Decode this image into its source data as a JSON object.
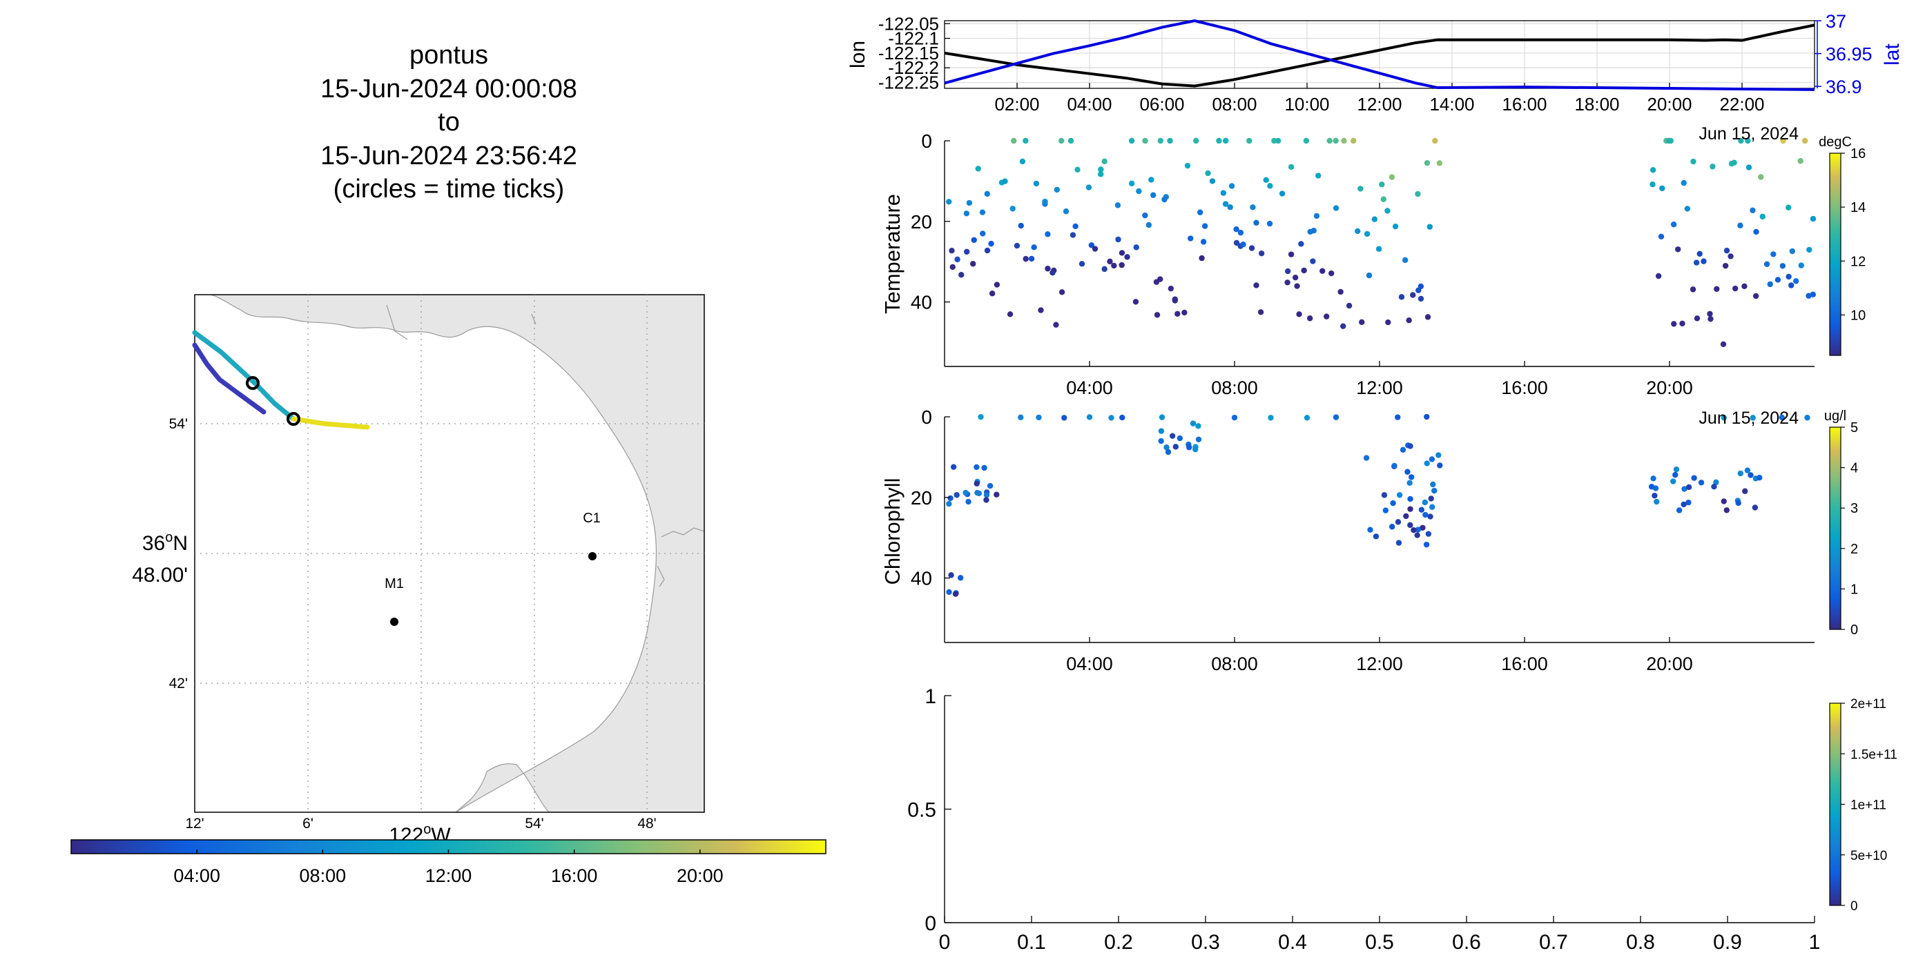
{
  "header": {
    "lines": [
      "pontus",
      "15-Jun-2024 00:00:08",
      "to",
      "15-Jun-2024 23:56:42",
      "(circles = time ticks)"
    ]
  },
  "map": {
    "lat_ticks": [
      "54'",
      "36",
      "48.00'",
      "42'"
    ],
    "lat_deg_sup": "o",
    "lat_hemi": "N",
    "lon_ticks": [
      "12'",
      "6'",
      "54'",
      "48'"
    ],
    "lon_main": "122",
    "lon_deg_sup": "o",
    "lon_hemi": "W",
    "stations": [
      {
        "name": "C1",
        "lon": -121.837,
        "lat": 36.797
      },
      {
        "name": "M1",
        "lon": -122.022,
        "lat": 36.747
      }
    ],
    "land_color": "#e6e6e6",
    "time_colorbar": {
      "ticks": [
        "04:00",
        "08:00",
        "12:00",
        "16:00",
        "20:00"
      ]
    }
  },
  "chart_data": [
    {
      "type": "line",
      "title": "",
      "xlabel": "",
      "ylabel": "lon",
      "ylabel_right": "lat",
      "x_ticks": [
        "02:00",
        "04:00",
        "06:00",
        "08:00",
        "10:00",
        "12:00",
        "14:00",
        "16:00",
        "18:00",
        "20:00",
        "22:00"
      ],
      "xlim": [
        0,
        24
      ],
      "y_ticks_left": [
        "-122.05",
        "-122.1",
        "-122.15",
        "-122.2",
        "-122.25"
      ],
      "ylim_left": [
        -122.27,
        -122.04
      ],
      "y_ticks_right": [
        "37",
        "36.95",
        "36.9"
      ],
      "ylim_right": [
        36.897,
        37.0
      ],
      "grid": true,
      "series": [
        {
          "name": "lon",
          "color": "#000000",
          "axis": "left",
          "x": [
            0,
            1,
            2,
            3,
            4,
            5,
            6,
            6.9,
            8,
            9,
            10,
            11,
            12,
            13,
            13.6,
            15,
            16,
            18,
            20,
            21,
            21.5,
            22,
            23,
            24
          ],
          "y": [
            -122.15,
            -122.17,
            -122.19,
            -122.205,
            -122.22,
            -122.235,
            -122.255,
            -122.262,
            -122.24,
            -122.215,
            -122.19,
            -122.165,
            -122.14,
            -122.115,
            -122.105,
            -122.105,
            -122.105,
            -122.105,
            -122.105,
            -122.107,
            -122.105,
            -122.107,
            -122.08,
            -122.055
          ]
        },
        {
          "name": "lat",
          "color": "#0000dd",
          "axis": "right",
          "x": [
            0,
            1,
            2,
            3,
            4,
            5,
            6,
            6.9,
            8,
            9,
            10,
            11,
            12,
            13,
            13.6,
            16,
            18,
            20,
            22,
            24
          ],
          "y": [
            36.905,
            36.92,
            36.935,
            36.95,
            36.962,
            36.975,
            36.99,
            37.0,
            36.985,
            36.965,
            36.95,
            36.935,
            36.92,
            36.905,
            36.898,
            36.899,
            36.898,
            36.897,
            36.896,
            36.895
          ]
        }
      ]
    },
    {
      "type": "scatter",
      "title": "",
      "xlabel": "",
      "ylabel": "Temperature",
      "x_ticks": [
        "04:00",
        "08:00",
        "12:00",
        "16:00",
        "20:00"
      ],
      "date_label": "Jun 15, 2024",
      "xlim": [
        0,
        24
      ],
      "ylim": [
        56,
        0
      ],
      "y_ticks": [
        "0",
        "20",
        "40"
      ],
      "colorbar": {
        "unit": "degC",
        "ticks": [
          "16",
          "14",
          "12",
          "10"
        ],
        "range": [
          8.5,
          16
        ]
      },
      "gaps": [
        [
          13.7,
          19.5
        ]
      ],
      "profile_depth_max": [
        40,
        48,
        32,
        45,
        30,
        45,
        48,
        50,
        36,
        48,
        32,
        48,
        52,
        40
      ],
      "profile_count": 180
    },
    {
      "type": "scatter",
      "title": "",
      "xlabel": "",
      "ylabel": "Chlorophyll",
      "x_ticks": [
        "04:00",
        "08:00",
        "12:00",
        "16:00",
        "20:00"
      ],
      "date_label": "Jun 15, 2024",
      "xlim": [
        0,
        24
      ],
      "ylim": [
        56,
        0
      ],
      "y_ticks": [
        "0",
        "20",
        "40"
      ],
      "colorbar": {
        "unit": "ug/l",
        "ticks": [
          "5",
          "4",
          "3",
          "2",
          "1",
          "0"
        ],
        "range": [
          0,
          5
        ]
      },
      "clusters": [
        {
          "x": [
            0.1,
            1.6
          ],
          "y": [
            12,
            22
          ],
          "n": 18
        },
        {
          "x": [
            0.1,
            0.5
          ],
          "y": [
            39,
            44
          ],
          "n": 5
        },
        {
          "x": [
            5.8,
            7.2
          ],
          "y": [
            0,
            15
          ],
          "n": 14
        },
        {
          "x": [
            11.6,
            13.7
          ],
          "y": [
            7,
            32
          ],
          "n": 40
        },
        {
          "x": [
            19.5,
            22.5
          ],
          "y": [
            13,
            24
          ],
          "n": 28
        }
      ],
      "surface_points_x": [
        1,
        2.1,
        2.6,
        3.3,
        4.0,
        4.6,
        4.9,
        6.0,
        8.0,
        9.0,
        10.0,
        10.8,
        12.5,
        13.3,
        21.5,
        22.3,
        23.1,
        23.8
      ]
    },
    {
      "type": "scatter",
      "title": "",
      "xlabel": "",
      "ylabel": "",
      "x_ticks": [
        "0",
        "0.1",
        "0.2",
        "0.3",
        "0.4",
        "0.5",
        "0.6",
        "0.7",
        "0.8",
        "0.9",
        "1"
      ],
      "y_ticks": [
        "0",
        "0.5",
        "1"
      ],
      "xlim": [
        0,
        1
      ],
      "ylim": [
        0,
        1
      ],
      "colorbar": {
        "ticks": [
          "2e+11",
          "1.5e+11",
          "1e+11",
          "5e+10",
          "0"
        ],
        "range": [
          0,
          200000000000.0
        ]
      },
      "values": []
    }
  ]
}
